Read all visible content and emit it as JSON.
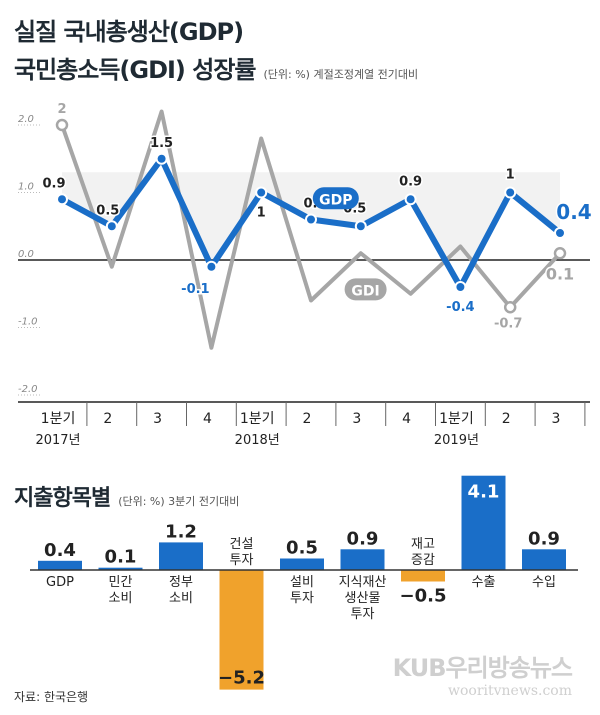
{
  "header": {
    "title_line1": "실질 국내총생산(GDP)",
    "title_line2": "국민총소득(GDI) 성장률",
    "unit_note": "(단위: %) 계절조정계열 전기대비"
  },
  "expenditure_header": {
    "title": "지출항목별",
    "unit_note": "(단위: %) 3분기 전기대비"
  },
  "source": "자료: 한국은행",
  "watermark": {
    "name": "KUB우리방송뉴스",
    "url": "wooritvnews.com"
  },
  "colors": {
    "gdp": "#1a6ec8",
    "gdi": "#a6a6a6",
    "positive_bar": "#1a6ec8",
    "negative_bar": "#f0a22c",
    "area_fill": "#ffffff"
  },
  "chart_data": [
    {
      "type": "line",
      "categories": [
        "1분기",
        "2",
        "3",
        "4",
        "1분기",
        "2",
        "3",
        "4",
        "1분기",
        "2",
        "3"
      ],
      "year_labels": [
        {
          "index": 0,
          "label": "2017년"
        },
        {
          "index": 4,
          "label": "2018년"
        },
        {
          "index": 8,
          "label": "2019년"
        }
      ],
      "y_ticks": [
        "2.0",
        "1.0",
        "0.0",
        "-1.0",
        "-2.0"
      ],
      "ylim": [
        -2.0,
        2.0
      ],
      "series": [
        {
          "name": "GDP",
          "values": [
            0.9,
            0.5,
            1.5,
            -0.1,
            1,
            0.6,
            0.5,
            0.9,
            -0.4,
            1,
            0.4
          ],
          "labels": [
            "0.9",
            "0.5",
            "1.5",
            "-0.1",
            "1",
            "0.6",
            "0.5",
            "0.9",
            "-0.4",
            "1",
            "0.4"
          ]
        },
        {
          "name": "GDI",
          "values": [
            2,
            -0.1,
            2.2,
            -1.3,
            1.8,
            -0.6,
            0.1,
            -0.5,
            0.2,
            -0.7,
            0.1
          ],
          "labels": [
            "2",
            "",
            "",
            "",
            "",
            "",
            "",
            "",
            "",
            "-0.7",
            "0.1"
          ]
        }
      ]
    },
    {
      "type": "bar",
      "categories": [
        "GDP",
        "민간 소비",
        "정부 소비",
        "건설 투자",
        "설비 투자",
        "지식재산 생산물 투자",
        "재고 증감",
        "수출",
        "수입"
      ],
      "values": [
        0.4,
        0.1,
        1.2,
        -5.2,
        0.5,
        0.9,
        -0.5,
        4.1,
        0.9
      ],
      "labels": [
        "0.4",
        "0.1",
        "1.2",
        "-5.2",
        "0.5",
        "0.9",
        "-0.5",
        "4.1",
        "0.9"
      ]
    }
  ]
}
